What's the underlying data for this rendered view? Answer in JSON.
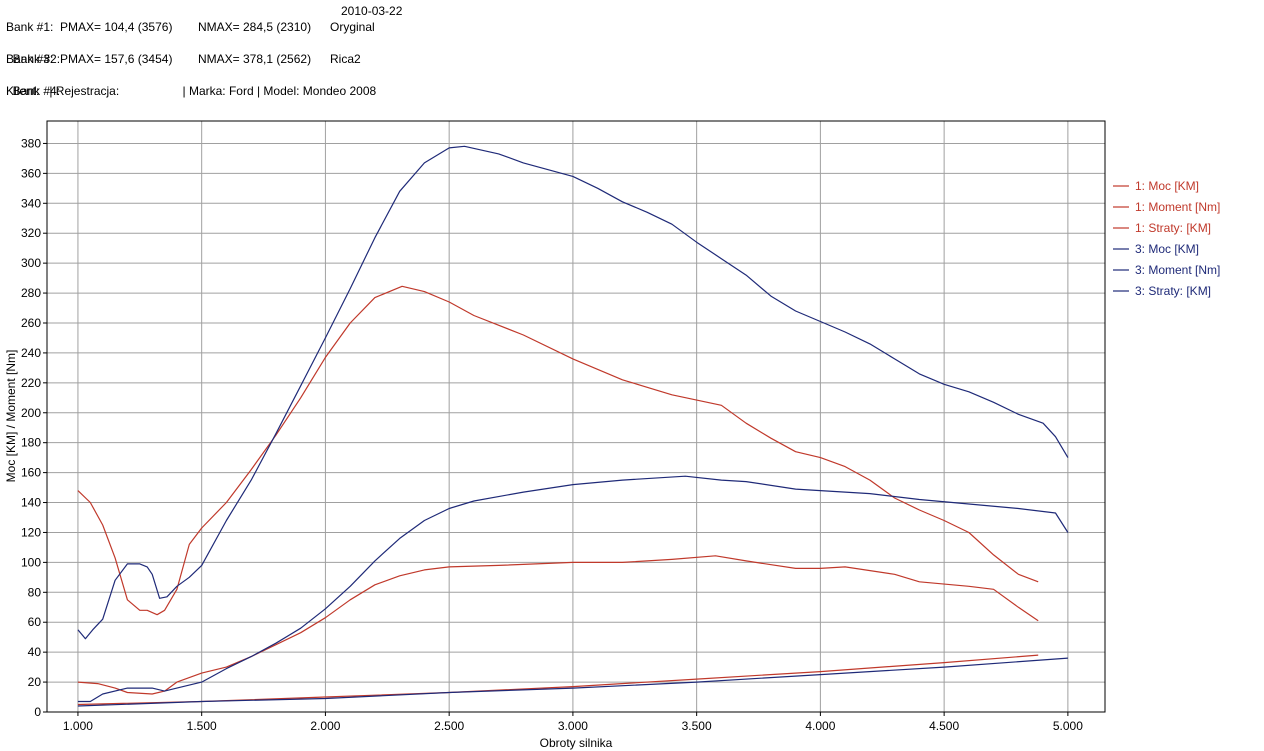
{
  "header": {
    "date": "2010-03-22",
    "lines": [
      {
        "left": "Bank #1:  PMAX= 104,4 (3576)",
        "mid": "NMAX= 284,5 (2310)",
        "name": "Oryginal"
      },
      {
        "left": "Bank #2:",
        "mid": "",
        "name": ""
      },
      {
        "left": "Bank #3:  PMAX= 157,6 (3454)",
        "mid": "NMAX= 378,1 (2562)",
        "name": "Rica2"
      },
      {
        "left": "Bank #4:",
        "mid": "",
        "name": ""
      }
    ],
    "info": "Klient:   | Rejestracja:                   | Marka: Ford | Model: Mondeo 2008"
  },
  "chart_data": {
    "type": "line",
    "xlabel": "Obroty silnika",
    "ylabel": "Moc [KM] / Moment [Nm]",
    "xlim": [
      875,
      5150
    ],
    "ylim": [
      0,
      395
    ],
    "xticks": [
      1000,
      1500,
      2000,
      2500,
      3000,
      3500,
      4000,
      4500,
      5000
    ],
    "xtick_labels": [
      "1.000",
      "1.500",
      "2.000",
      "2.500",
      "3.000",
      "3.500",
      "4.000",
      "4.500",
      "5.000"
    ],
    "yticks": [
      0,
      20,
      40,
      60,
      80,
      100,
      120,
      140,
      160,
      180,
      200,
      220,
      240,
      260,
      280,
      300,
      320,
      340,
      360,
      380
    ],
    "grid": true,
    "legend_position": "right",
    "colors": {
      "bank1": "#c0392b",
      "bank3": "#1f2a78"
    },
    "series": [
      {
        "name": "1: Moc [KM]",
        "color": "#c0392b",
        "points": [
          [
            1000,
            20
          ],
          [
            1080,
            19
          ],
          [
            1150,
            16
          ],
          [
            1200,
            13
          ],
          [
            1300,
            12
          ],
          [
            1350,
            14
          ],
          [
            1400,
            20
          ],
          [
            1500,
            26
          ],
          [
            1600,
            30
          ],
          [
            1700,
            37
          ],
          [
            1800,
            45
          ],
          [
            1900,
            53
          ],
          [
            2000,
            63
          ],
          [
            2100,
            75
          ],
          [
            2200,
            85
          ],
          [
            2300,
            91
          ],
          [
            2400,
            95
          ],
          [
            2500,
            97
          ],
          [
            2700,
            98
          ],
          [
            3000,
            100
          ],
          [
            3200,
            100
          ],
          [
            3400,
            102
          ],
          [
            3576,
            104.4
          ],
          [
            3700,
            101
          ],
          [
            3900,
            96
          ],
          [
            4000,
            96
          ],
          [
            4100,
            97
          ],
          [
            4300,
            92
          ],
          [
            4400,
            87
          ],
          [
            4600,
            84
          ],
          [
            4700,
            82
          ],
          [
            4800,
            70
          ],
          [
            4880,
            61
          ]
        ]
      },
      {
        "name": "1: Moment [Nm]",
        "color": "#c0392b",
        "points": [
          [
            1000,
            148
          ],
          [
            1050,
            140
          ],
          [
            1100,
            125
          ],
          [
            1150,
            103
          ],
          [
            1200,
            75
          ],
          [
            1250,
            68
          ],
          [
            1280,
            68
          ],
          [
            1320,
            65
          ],
          [
            1350,
            68
          ],
          [
            1400,
            82
          ],
          [
            1450,
            112
          ],
          [
            1500,
            123
          ],
          [
            1600,
            140
          ],
          [
            1700,
            162
          ],
          [
            1800,
            185
          ],
          [
            1900,
            210
          ],
          [
            2000,
            237
          ],
          [
            2100,
            260
          ],
          [
            2200,
            277
          ],
          [
            2310,
            284.5
          ],
          [
            2400,
            281
          ],
          [
            2500,
            274
          ],
          [
            2600,
            265
          ],
          [
            2800,
            252
          ],
          [
            3000,
            236
          ],
          [
            3200,
            222
          ],
          [
            3400,
            212
          ],
          [
            3600,
            205
          ],
          [
            3700,
            193
          ],
          [
            3800,
            183
          ],
          [
            3900,
            174
          ],
          [
            4000,
            170
          ],
          [
            4100,
            164
          ],
          [
            4200,
            155
          ],
          [
            4300,
            143
          ],
          [
            4400,
            135
          ],
          [
            4500,
            128
          ],
          [
            4600,
            120
          ],
          [
            4700,
            105
          ],
          [
            4800,
            92
          ],
          [
            4880,
            87
          ]
        ]
      },
      {
        "name": "1: Straty: [KM]",
        "color": "#c0392b",
        "points": [
          [
            1000,
            5
          ],
          [
            1500,
            7
          ],
          [
            2000,
            10
          ],
          [
            2500,
            13
          ],
          [
            3000,
            17
          ],
          [
            3500,
            22
          ],
          [
            4000,
            27
          ],
          [
            4500,
            33
          ],
          [
            4880,
            38
          ]
        ]
      },
      {
        "name": "3: Moc [KM]",
        "color": "#1f2a78",
        "points": [
          [
            1000,
            7
          ],
          [
            1050,
            7
          ],
          [
            1100,
            12
          ],
          [
            1200,
            16
          ],
          [
            1300,
            16
          ],
          [
            1350,
            14
          ],
          [
            1400,
            16
          ],
          [
            1500,
            20
          ],
          [
            1600,
            29
          ],
          [
            1700,
            37
          ],
          [
            1800,
            46
          ],
          [
            1900,
            56
          ],
          [
            2000,
            69
          ],
          [
            2100,
            84
          ],
          [
            2200,
            101
          ],
          [
            2300,
            116
          ],
          [
            2400,
            128
          ],
          [
            2500,
            136
          ],
          [
            2600,
            141
          ],
          [
            2800,
            147
          ],
          [
            3000,
            152
          ],
          [
            3200,
            155
          ],
          [
            3454,
            157.6
          ],
          [
            3600,
            155
          ],
          [
            3700,
            154
          ],
          [
            3900,
            149
          ],
          [
            4000,
            148
          ],
          [
            4200,
            146
          ],
          [
            4400,
            142
          ],
          [
            4600,
            139
          ],
          [
            4800,
            136
          ],
          [
            4950,
            133
          ],
          [
            5000,
            120
          ]
        ]
      },
      {
        "name": "3: Moment [Nm]",
        "color": "#1f2a78",
        "points": [
          [
            1000,
            55
          ],
          [
            1030,
            49
          ],
          [
            1060,
            55
          ],
          [
            1100,
            62
          ],
          [
            1150,
            88
          ],
          [
            1200,
            99
          ],
          [
            1250,
            99
          ],
          [
            1280,
            97
          ],
          [
            1300,
            92
          ],
          [
            1330,
            76
          ],
          [
            1360,
            77
          ],
          [
            1400,
            84
          ],
          [
            1450,
            90
          ],
          [
            1500,
            98
          ],
          [
            1600,
            128
          ],
          [
            1700,
            155
          ],
          [
            1800,
            186
          ],
          [
            1900,
            218
          ],
          [
            2000,
            250
          ],
          [
            2100,
            283
          ],
          [
            2200,
            317
          ],
          [
            2300,
            348
          ],
          [
            2400,
            367
          ],
          [
            2500,
            377
          ],
          [
            2562,
            378.1
          ],
          [
            2700,
            373
          ],
          [
            2800,
            367
          ],
          [
            3000,
            358
          ],
          [
            3100,
            350
          ],
          [
            3200,
            341
          ],
          [
            3300,
            334
          ],
          [
            3400,
            326
          ],
          [
            3500,
            314
          ],
          [
            3600,
            303
          ],
          [
            3700,
            292
          ],
          [
            3800,
            278
          ],
          [
            3900,
            268
          ],
          [
            4000,
            261
          ],
          [
            4100,
            254
          ],
          [
            4200,
            246
          ],
          [
            4300,
            236
          ],
          [
            4400,
            226
          ],
          [
            4500,
            219
          ],
          [
            4600,
            214
          ],
          [
            4700,
            207
          ],
          [
            4800,
            199
          ],
          [
            4900,
            193
          ],
          [
            4950,
            184
          ],
          [
            5000,
            170
          ]
        ]
      },
      {
        "name": "3: Straty: [KM]",
        "color": "#1f2a78",
        "points": [
          [
            1000,
            4
          ],
          [
            1500,
            7
          ],
          [
            2000,
            9
          ],
          [
            2500,
            13
          ],
          [
            3000,
            16
          ],
          [
            3500,
            20
          ],
          [
            4000,
            25
          ],
          [
            4500,
            30
          ],
          [
            5000,
            36
          ]
        ]
      }
    ]
  }
}
